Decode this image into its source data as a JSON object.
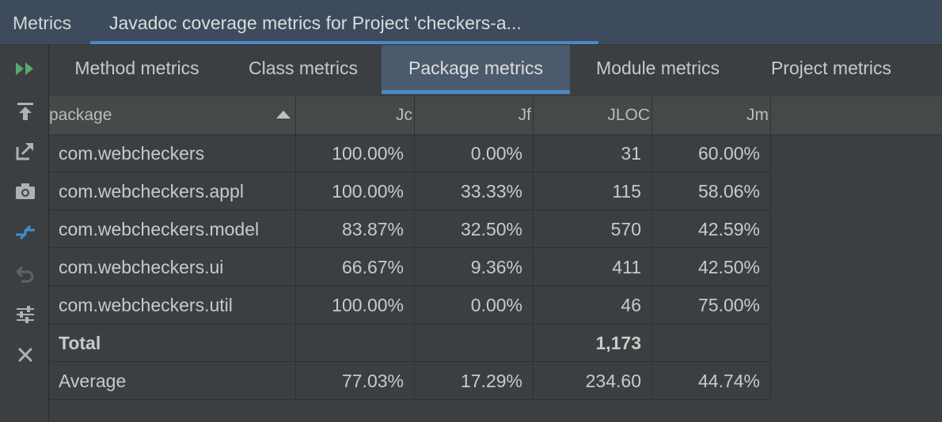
{
  "toolwindow": {
    "title": "Metrics",
    "tab_label": "Javadoc coverage metrics for Project 'checkers-a..."
  },
  "toolbar": {
    "icons": [
      "run-icon",
      "export-to-top-icon",
      "open-external-icon",
      "camera-icon",
      "compare-icon",
      "undo-icon",
      "settings-sliders-icon",
      "close-icon"
    ]
  },
  "tabs": [
    {
      "label": "Method metrics",
      "active": false
    },
    {
      "label": "Class metrics",
      "active": false
    },
    {
      "label": "Package metrics",
      "active": true
    },
    {
      "label": "Module metrics",
      "active": false
    },
    {
      "label": "Project metrics",
      "active": false
    }
  ],
  "table": {
    "columns": [
      "package",
      "Jc",
      "Jf",
      "JLOC",
      "Jm"
    ],
    "sort_column": "package",
    "sort_direction": "ascending",
    "rows": [
      [
        "com.webcheckers",
        "100.00%",
        "0.00%",
        "31",
        "60.00%"
      ],
      [
        "com.webcheckers.appl",
        "100.00%",
        "33.33%",
        "115",
        "58.06%"
      ],
      [
        "com.webcheckers.model",
        "83.87%",
        "32.50%",
        "570",
        "42.59%"
      ],
      [
        "com.webcheckers.ui",
        "66.67%",
        "9.36%",
        "411",
        "42.50%"
      ],
      [
        "com.webcheckers.util",
        "100.00%",
        "0.00%",
        "46",
        "75.00%"
      ]
    ],
    "total": [
      "Total",
      "",
      "",
      "1,173",
      ""
    ],
    "average": [
      "Average",
      "77.03%",
      "17.29%",
      "234.60",
      "44.74%"
    ]
  },
  "colors": {
    "accent": "#4a88c7",
    "panel": "#3c3f41",
    "header": "#3d4b5c",
    "run": "#59a869"
  }
}
